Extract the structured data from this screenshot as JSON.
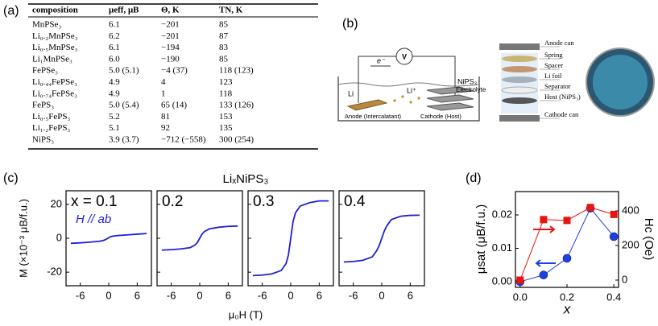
{
  "table": {
    "label": "(a)",
    "header": [
      "composition",
      "μeff, μB",
      "Θ, K",
      "TN, K"
    ],
    "rows": [
      [
        "MnPSe₃",
        "6.1",
        "−201",
        "85"
      ],
      [
        "Li₀.₂MnPSe₃",
        "6.2",
        "−201",
        "87"
      ],
      [
        "Li₀.₅MnPSe₃",
        "6.1",
        "−194",
        "83"
      ],
      [
        "Li₁MnPSe₃",
        "6.0",
        "−190",
        "85"
      ],
      [
        "FePSe₃",
        "5.0 (5.1)",
        "−4 (37)",
        "118 (123)"
      ],
      [
        "Li₀.₄₄FePSe₃",
        "4.9",
        "4",
        "123"
      ],
      [
        "Li₀.₇₄FePSe₃",
        "4.9",
        "1",
        "118"
      ],
      [
        "FePS₃",
        "5.0 (5.4)",
        "65 (14)",
        "133 (126)"
      ],
      [
        "Li₀.₅FePS₃",
        "5.2",
        "81",
        "153"
      ],
      [
        "Li₁.₂FePS₃",
        "5.1",
        "92",
        "135"
      ],
      [
        "NiPS₃",
        "3.9 (3.7)",
        "−712 (−558)",
        "300 (254)"
      ]
    ]
  },
  "diagram": {
    "label": "(b)",
    "meter": "V",
    "electron": "e⁻",
    "anode_metal": "Li",
    "ion": "Li⁺",
    "host": "NiPS₃",
    "anode": "Anode (Intercalatant)",
    "cathode": "Cathode (Host)",
    "electrolyte": "Electrolyte",
    "stack": [
      "Anode can",
      "Spring",
      "Spacer",
      "Li foil",
      "Separator",
      "Host (NiPS₃)",
      "Cathode can"
    ]
  },
  "chart_data": [
    {
      "type": "line",
      "label": "(c)",
      "title": "LiₓNiPS₃",
      "xlabel": "μ₀H (T)",
      "ylabel": "M (×10⁻³ μB/f.u.)",
      "annotation": "H // ab",
      "x": [
        -8,
        -6,
        -4,
        -2,
        -1,
        -0.5,
        0,
        0.5,
        1,
        2,
        4,
        6,
        8
      ],
      "xlim": [
        -9,
        9
      ],
      "xticks": [
        -6,
        0,
        6
      ],
      "ylim": [
        -28,
        28
      ],
      "yticks": [
        -20,
        0,
        20
      ],
      "series": [
        {
          "name": "x = 0.1",
          "color": "#1f1fd6",
          "values": [
            -3,
            -2.7,
            -2.3,
            -1.8,
            -1.2,
            -0.5,
            0.3,
            1,
            1.3,
            1.6,
            2,
            2.4,
            2.8
          ]
        },
        {
          "name": "0.2",
          "color": "#1f1fd6",
          "values": [
            -7,
            -6.7,
            -6.3,
            -5.5,
            -4,
            -2.5,
            0,
            2.5,
            4,
            5.5,
            6.5,
            7,
            7.2
          ]
        },
        {
          "name": "0.3",
          "color": "#1f1fd6",
          "values": [
            -22,
            -21.7,
            -21,
            -19,
            -15,
            -10,
            0,
            10,
            15,
            19,
            21,
            22,
            22
          ]
        },
        {
          "name": "0.4",
          "color": "#1f1fd6",
          "values": [
            -14,
            -13.7,
            -13,
            -11,
            -7,
            -4,
            0,
            4,
            7,
            11,
            13,
            13.5,
            13.6
          ]
        }
      ]
    },
    {
      "type": "dual",
      "label": "(d)",
      "xlabel": "x",
      "ylabel": "μsat (μB/f.u.)",
      "y2label": "Hc (Oe)",
      "x": [
        0,
        0.1,
        0.2,
        0.3,
        0.4
      ],
      "xlim": [
        -0.02,
        0.42
      ],
      "xticks": [
        {
          "value": 0,
          "label": "0.0"
        },
        0.2,
        0.4
      ],
      "ylim": [
        -0.0017,
        0.027
      ],
      "yticks": [
        {
          "value": 0,
          "label": "0.00"
        },
        0.01,
        0.02
      ],
      "y2lim": [
        -42,
        512
      ],
      "y2ticks": [
        0,
        200,
        400
      ],
      "series": [
        {
          "color": "#1f3fe0",
          "marker": "circle",
          "values": [
            0,
            0.002,
            0.007,
            0.022,
            0.0135
          ]
        },
        {
          "color": "#e8140f",
          "marker": "square",
          "axis": "y2",
          "values": [
            0,
            350,
            345,
            420,
            380
          ]
        }
      ]
    }
  ]
}
